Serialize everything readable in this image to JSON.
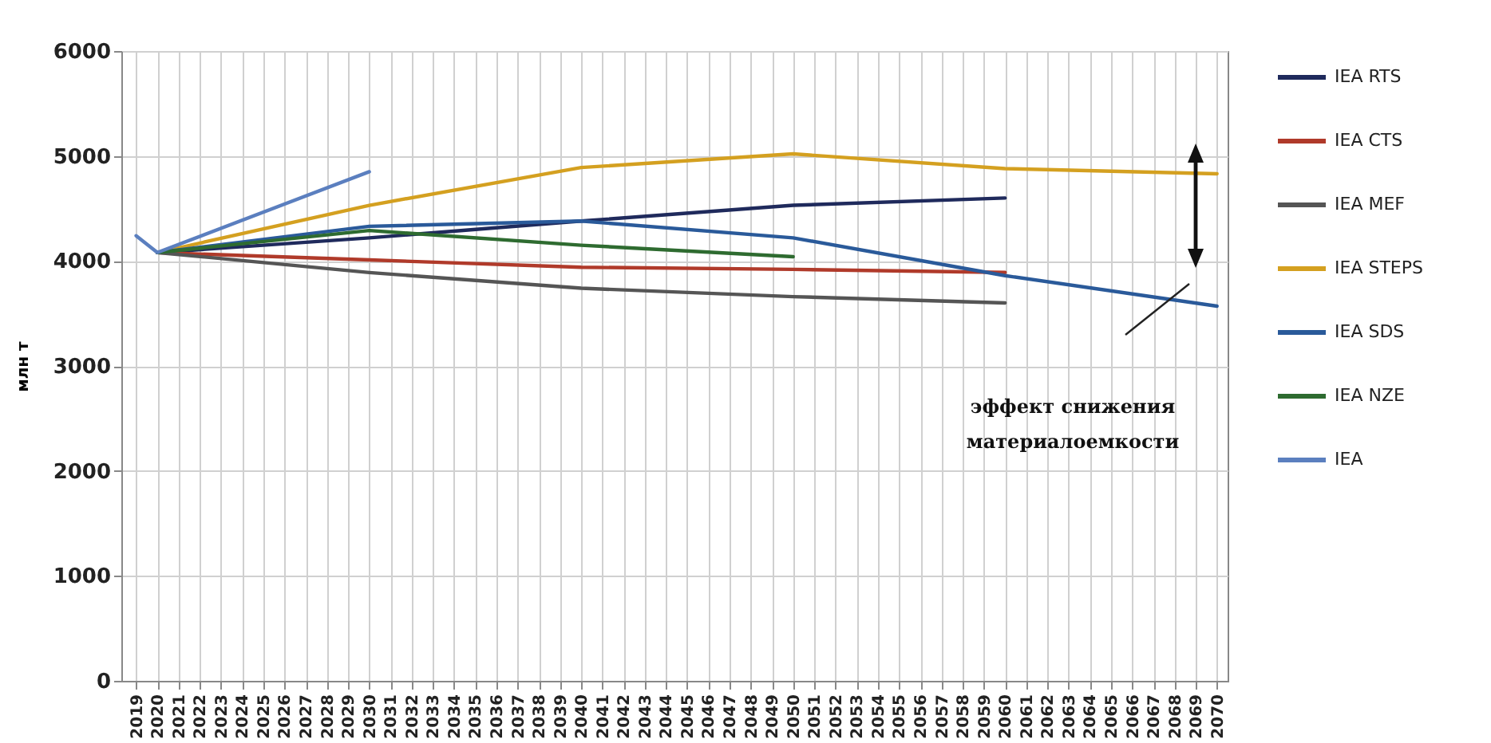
{
  "chart_data": {
    "type": "line",
    "ylabel": "млн т",
    "xlim": [
      2018.3,
      2070.5
    ],
    "xticks": [
      2019,
      2020,
      2021,
      2022,
      2023,
      2024,
      2025,
      2026,
      2027,
      2028,
      2029,
      2030,
      2031,
      2032,
      2033,
      2034,
      2035,
      2036,
      2037,
      2038,
      2039,
      2040,
      2041,
      2042,
      2043,
      2044,
      2045,
      2046,
      2047,
      2048,
      2049,
      2050,
      2051,
      2052,
      2053,
      2054,
      2055,
      2056,
      2057,
      2058,
      2059,
      2060,
      2061,
      2062,
      2063,
      2064,
      2065,
      2066,
      2067,
      2068,
      2069,
      2070
    ],
    "ylim": [
      0,
      6000
    ],
    "yticks": [
      0,
      1000,
      2000,
      3000,
      4000,
      5000,
      6000
    ],
    "grid": true,
    "legend": "right",
    "line_style": "solid",
    "annotations": [
      "эффект снижения материалоемкости"
    ],
    "series": [
      {
        "name": "IEA RTS",
        "color": "#1f2a5c",
        "x": [
          2020,
          2030,
          2040,
          2050,
          2060
        ],
        "values": [
          4080,
          4220,
          4380,
          4530,
          4600
        ]
      },
      {
        "name": "IEA CTS",
        "color": "#b03a2a",
        "x": [
          2020,
          2030,
          2040,
          2050,
          2060
        ],
        "values": [
          4080,
          4010,
          3940,
          3920,
          3890
        ]
      },
      {
        "name": "IEA MEF",
        "color": "#555555",
        "x": [
          2020,
          2030,
          2040,
          2050,
          2060
        ],
        "values": [
          4080,
          3890,
          3740,
          3660,
          3600
        ]
      },
      {
        "name": "IEA STEPS",
        "color": "#d4a020",
        "x": [
          2020,
          2030,
          2040,
          2050,
          2060,
          2070
        ],
        "values": [
          4080,
          4530,
          4890,
          5020,
          4880,
          4830
        ]
      },
      {
        "name": "IEA SDS",
        "color": "#2a5a9a",
        "x": [
          2020,
          2030,
          2040,
          2050,
          2060,
          2070
        ],
        "values": [
          4080,
          4330,
          4380,
          4220,
          3860,
          3570
        ]
      },
      {
        "name": "IEA NZE",
        "color": "#2e6b30",
        "x": [
          2020,
          2030,
          2040,
          2050
        ],
        "values": [
          4080,
          4290,
          4150,
          4040
        ]
      },
      {
        "name": "IEA",
        "color": "#5b7fbf",
        "x": [
          2019,
          2020,
          2030
        ],
        "values": [
          4240,
          4080,
          4850
        ]
      }
    ]
  }
}
